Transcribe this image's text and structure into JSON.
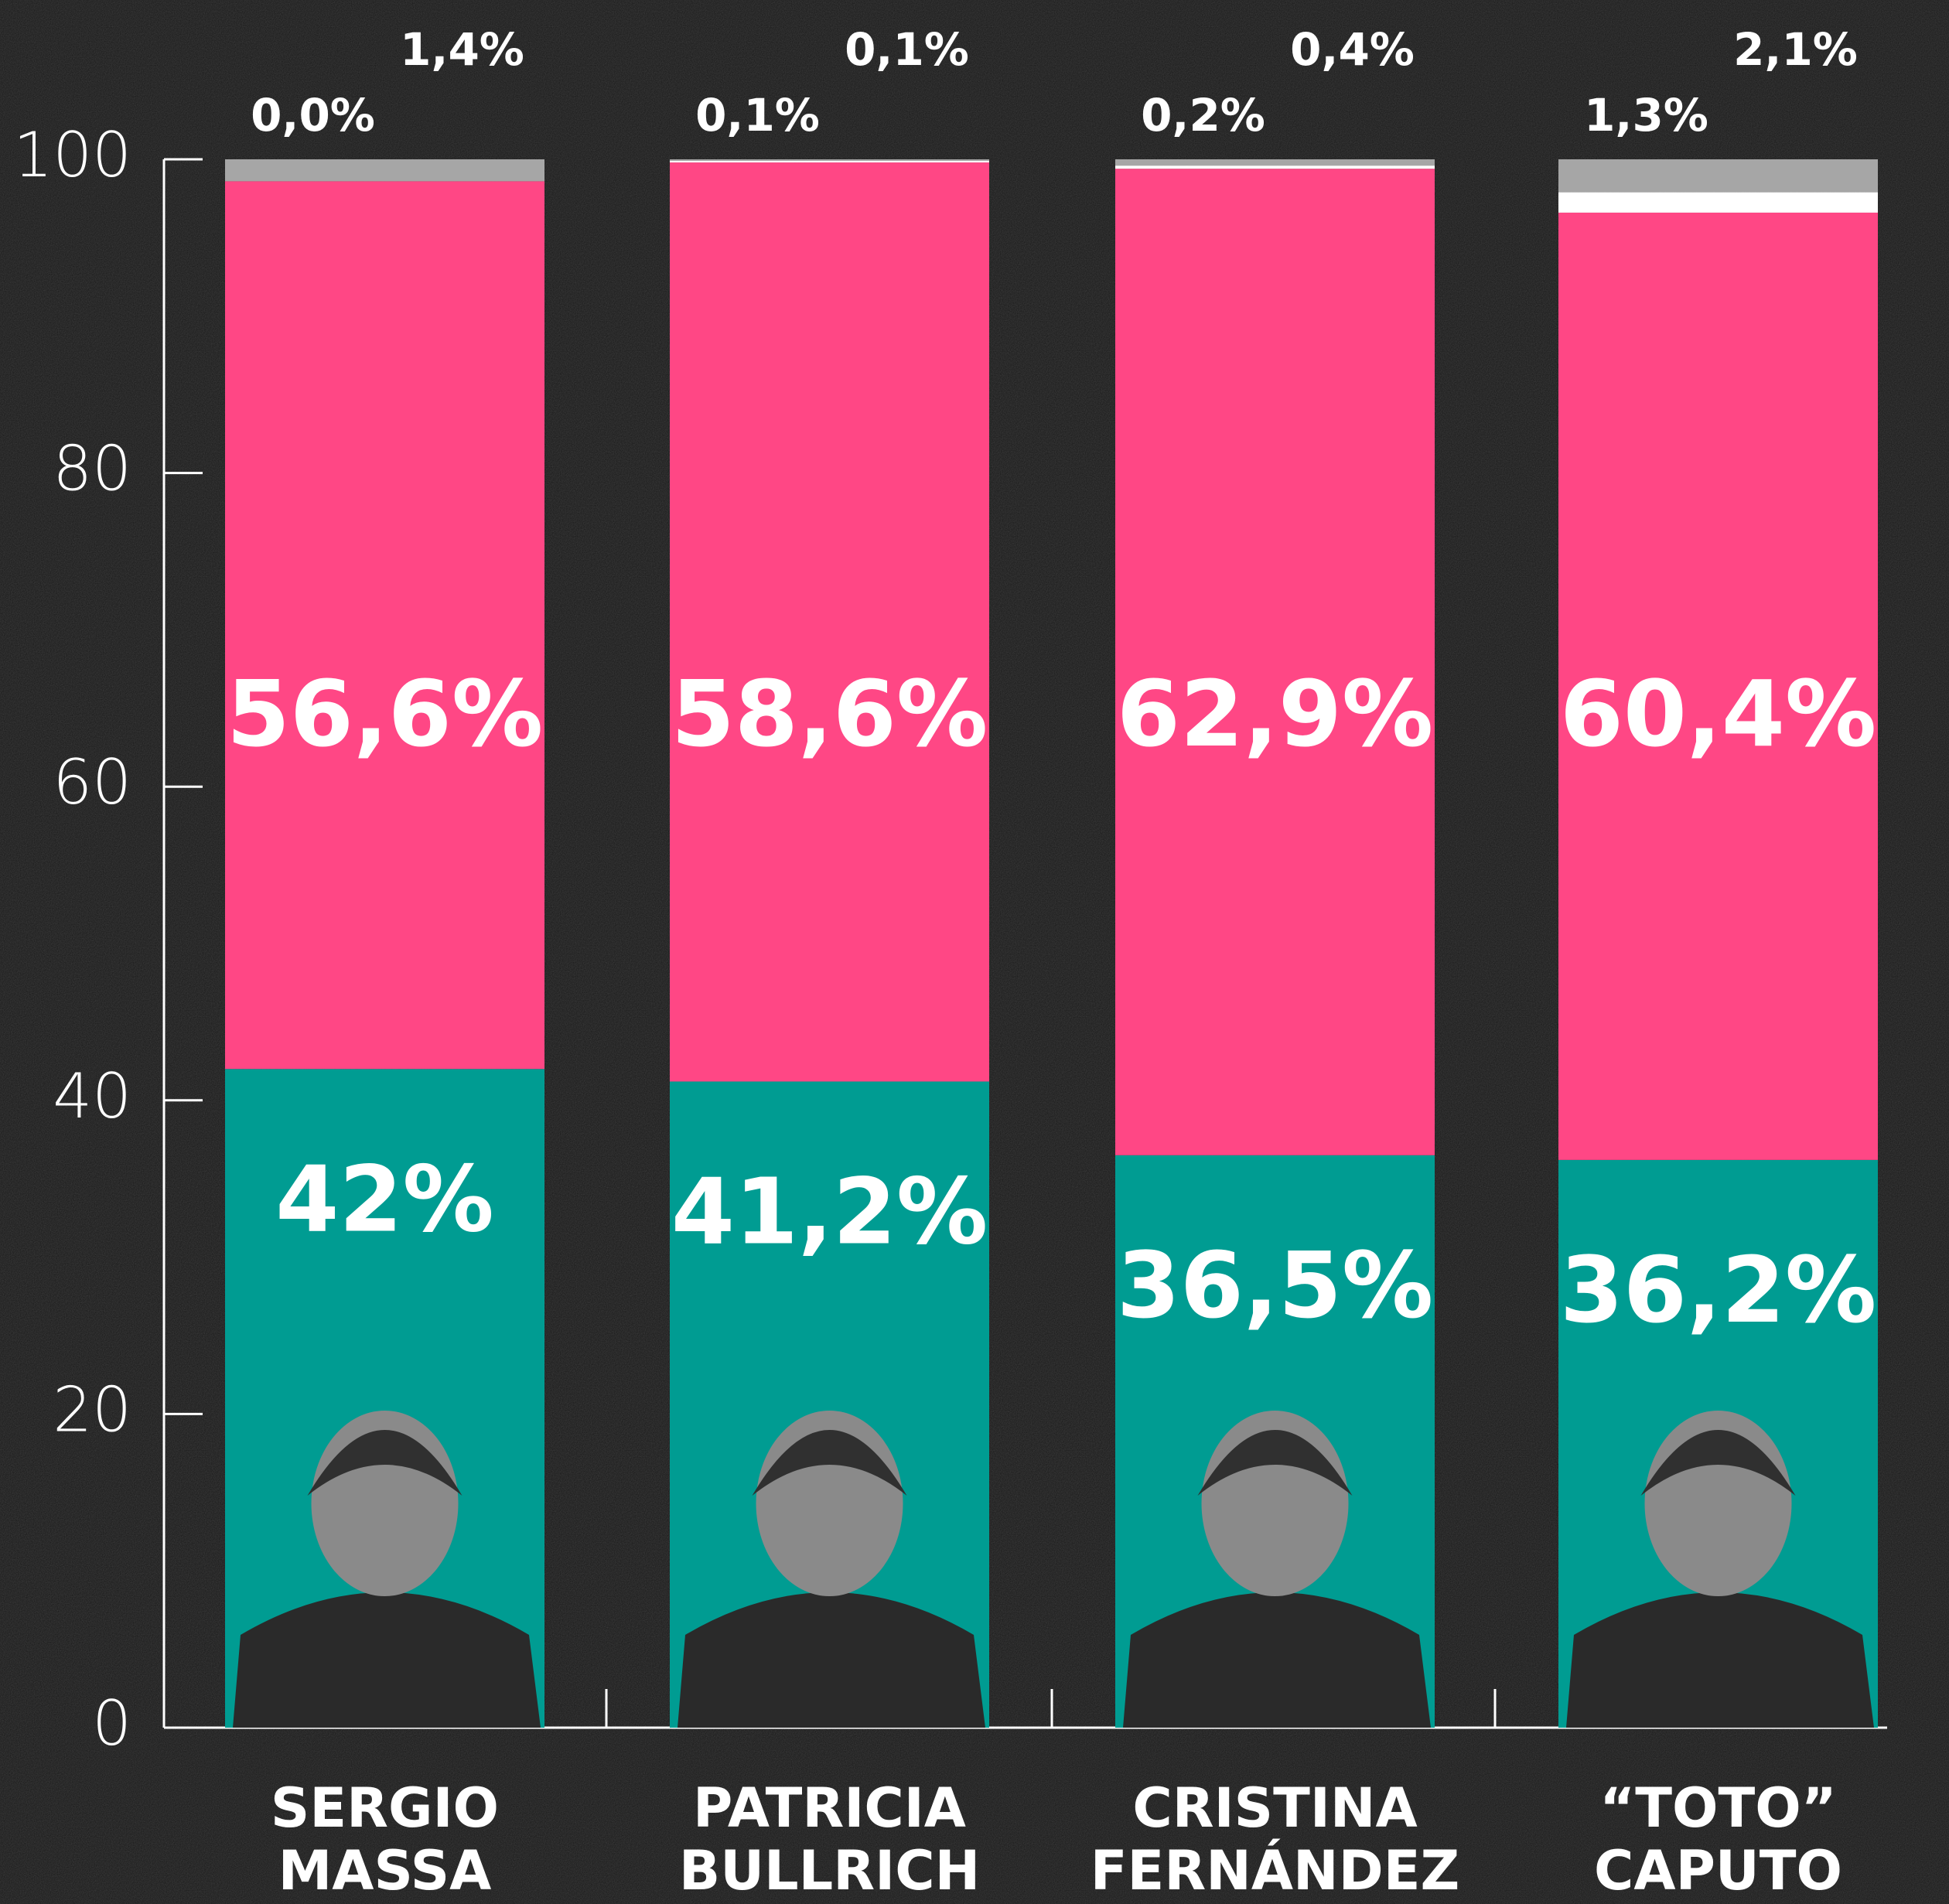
{
  "chart_data": {
    "type": "stacked_bar",
    "categories": [
      [
        "SERGIO",
        "MASSA"
      ],
      [
        "PATRICIA",
        "BULLRICH"
      ],
      [
        "CRISTINA",
        "FERNÁNDEZ"
      ],
      [
        "“TOTO”",
        "CAPUTO"
      ]
    ],
    "series": [
      {
        "color": "#009c92",
        "values": [
          42,
          41.2,
          36.5,
          36.2
        ],
        "value_labels": [
          "42%",
          "41,2%",
          "36,5%",
          "36,2%"
        ]
      },
      {
        "color": "#ff4785",
        "values": [
          56.6,
          58.6,
          62.9,
          60.4
        ],
        "value_labels": [
          "56,6%",
          "58,6%",
          "62,9%",
          "60,4%"
        ]
      },
      {
        "color": "#ffffff",
        "values": [
          0.0,
          0.1,
          0.2,
          1.3
        ],
        "value_labels": [
          "0,0%",
          "0,1%",
          "0,2%",
          "1,3%"
        ]
      },
      {
        "color": "#a6a6a6",
        "values": [
          1.4,
          0.1,
          0.4,
          2.1
        ],
        "value_labels": [
          "1,4%",
          "0,1%",
          "0,4%",
          "2,1%"
        ]
      }
    ],
    "ylim": [
      0,
      100
    ],
    "yticks": [
      0,
      20,
      40,
      60,
      80,
      100
    ]
  }
}
